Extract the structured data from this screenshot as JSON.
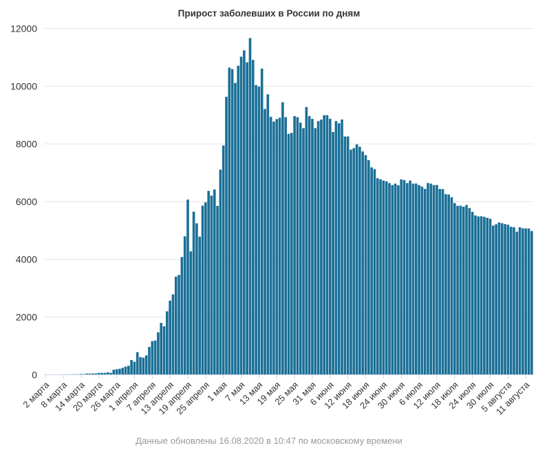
{
  "footer": "Данные обновлены 16.08.2020 в 10:47 по московскому времени",
  "colors": {
    "bar": "#1a6f96",
    "grid": "#e6e6e6",
    "text": "#333333",
    "footer": "#999999"
  },
  "chart_data": {
    "type": "bar",
    "title": "Прирост заболевших в России по дням",
    "xlabel": "",
    "ylabel": "",
    "ylim": [
      0,
      12000
    ],
    "yticks": [
      0,
      2000,
      4000,
      6000,
      8000,
      10000,
      12000
    ],
    "grid": true,
    "legend": "none",
    "first_date": "2 марта",
    "x_tick_labels": [
      "2 марта",
      "8 марта",
      "14 марта",
      "20 марта",
      "26 марта",
      "1 апреля",
      "7 апреля",
      "13 апреля",
      "19 апреля",
      "25 апреля",
      "1 мая",
      "7 мая",
      "13 мая",
      "19 мая",
      "25 мая",
      "31 мая",
      "6 июня",
      "12 июня",
      "18 июня",
      "24 июня",
      "30 июня",
      "6 июля",
      "12 июля",
      "18 июля",
      "24 июля",
      "30 июля",
      "5 августа",
      "11 августа"
    ],
    "values": [
      0,
      0,
      0,
      0,
      0,
      1,
      0,
      3,
      3,
      4,
      6,
      7,
      14,
      14,
      30,
      30,
      33,
      34,
      52,
      53,
      54,
      71,
      57,
      163,
      182,
      196,
      228,
      270,
      302,
      501,
      440,
      771,
      601,
      582,
      658,
      954,
      1154,
      1175,
      1459,
      1786,
      1667,
      2186,
      2558,
      2774,
      3388,
      3448,
      4070,
      4785,
      6060,
      4268,
      5642,
      5236,
      4774,
      5849,
      5966,
      6361,
      6198,
      6411,
      5841,
      7099,
      7933,
      9623,
      10633,
      10581,
      10102,
      10699,
      11012,
      11231,
      10817,
      11656,
      10899,
      10028,
      9974,
      10598,
      9200,
      9709,
      8926,
      8764,
      8849,
      8894,
      9434,
      8915,
      8338,
      8371,
      8952,
      8915,
      8726,
      8536,
      9268,
      8952,
      8855,
      8536,
      8779,
      8831,
      8985,
      8987,
      8858,
      8404,
      8779,
      8706,
      8835,
      8246,
      8248,
      7790,
      7843,
      7972,
      7889,
      7728,
      7600,
      7425,
      7176,
      7113,
      6800,
      6760,
      6719,
      6693,
      6632,
      6562,
      6611,
      6556,
      6760,
      6736,
      6632,
      6719,
      6611,
      6615,
      6562,
      6509,
      6428,
      6635,
      6611,
      6562,
      6566,
      6428,
      6422,
      6248,
      6234,
      6139,
      5940,
      5842,
      5848,
      5811,
      5871,
      5765,
      5635,
      5509,
      5475,
      5482,
      5462,
      5427,
      5395,
      5159,
      5204,
      5267,
      5241,
      5212,
      5189,
      5118,
      5102,
      4945,
      5102,
      5065,
      5061,
      5057,
      4969
    ]
  }
}
